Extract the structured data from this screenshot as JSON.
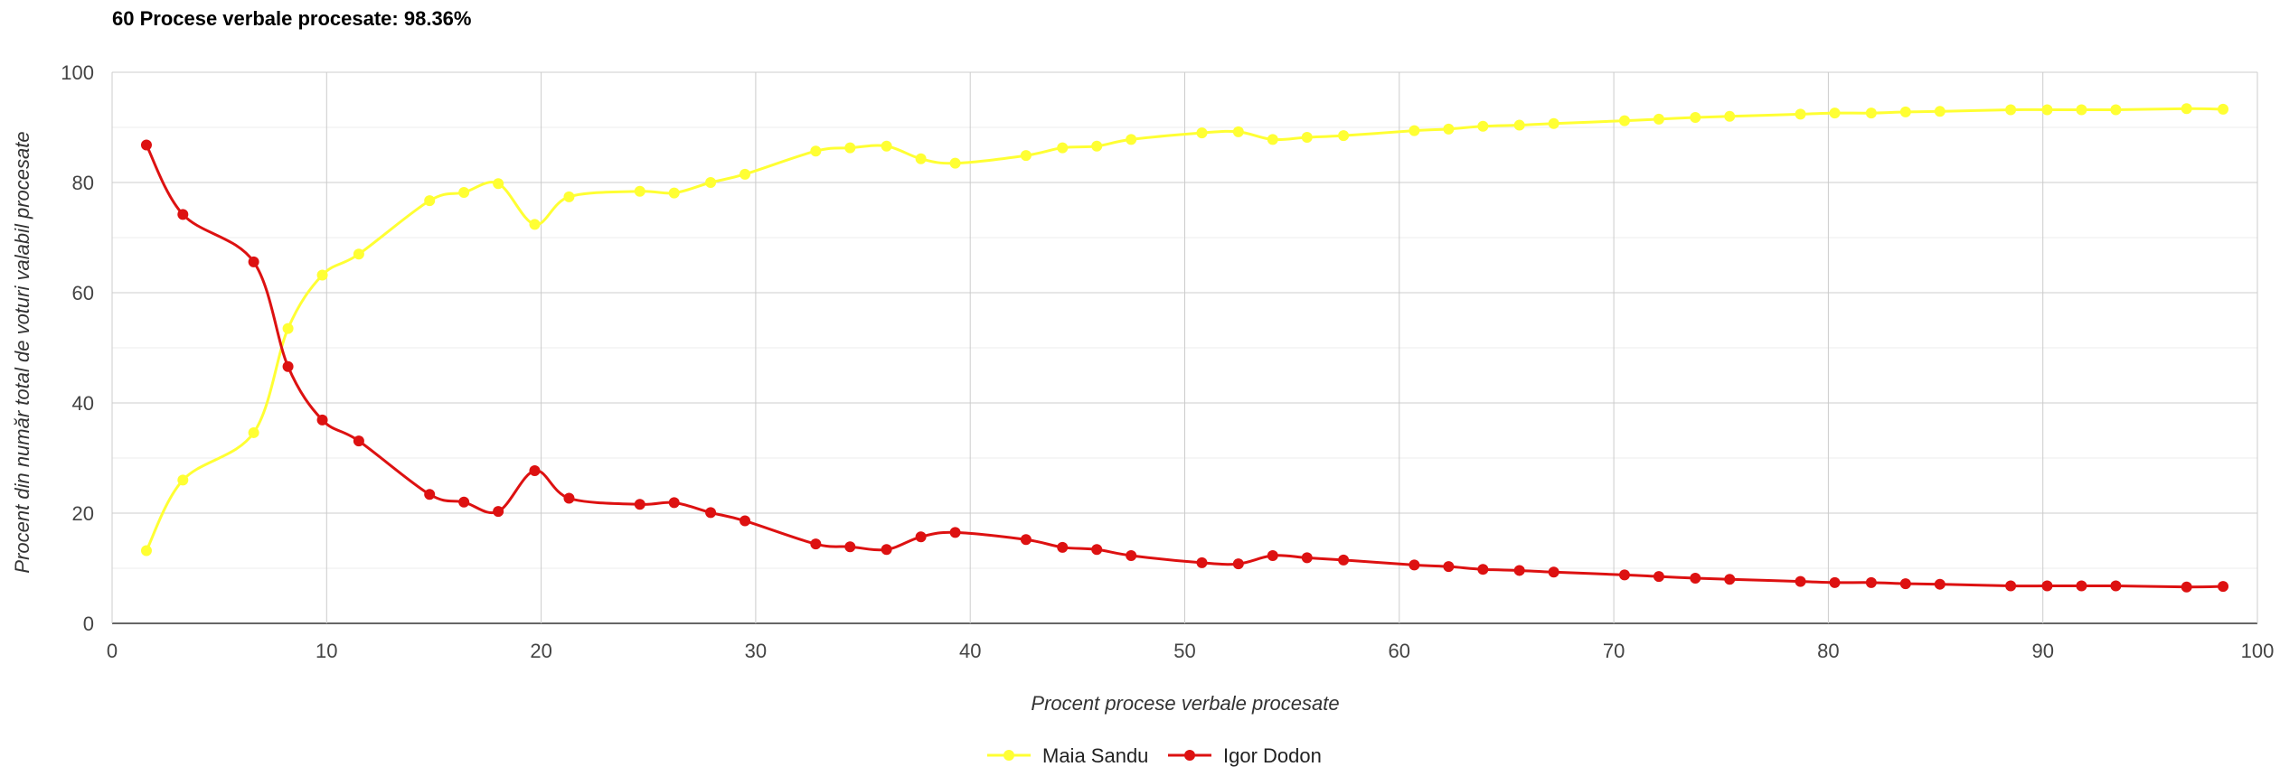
{
  "chart_data": {
    "type": "line",
    "title": "60 Procese verbale procesate: 98.36%",
    "xlabel": "Procent procese verbale procesate",
    "ylabel": "Procent din număr total de voturi valabil procesate",
    "xlim": [
      0,
      100
    ],
    "ylim": [
      0,
      100
    ],
    "xticks": [
      0,
      10,
      20,
      30,
      40,
      50,
      60,
      70,
      80,
      90,
      100
    ],
    "yticks": [
      0,
      20,
      40,
      60,
      80,
      100
    ],
    "grid": true,
    "legend_position": "bottom",
    "series": [
      {
        "name": "Maia Sandu",
        "color": "#ffff33",
        "points": [
          [
            1.6,
            13.2
          ],
          [
            3.3,
            26.0
          ],
          [
            6.6,
            34.6
          ],
          [
            8.2,
            53.5
          ],
          [
            9.8,
            63.2
          ],
          [
            11.5,
            67.0
          ],
          [
            14.8,
            76.7
          ],
          [
            16.4,
            78.2
          ],
          [
            18.0,
            79.8
          ],
          [
            19.7,
            72.4
          ],
          [
            21.3,
            77.4
          ],
          [
            24.6,
            78.4
          ],
          [
            26.2,
            78.1
          ],
          [
            27.9,
            80.0
          ],
          [
            29.5,
            81.5
          ],
          [
            32.8,
            85.7
          ],
          [
            34.4,
            86.3
          ],
          [
            36.1,
            86.6
          ],
          [
            37.7,
            84.3
          ],
          [
            39.3,
            83.5
          ],
          [
            42.6,
            84.9
          ],
          [
            44.3,
            86.3
          ],
          [
            45.9,
            86.6
          ],
          [
            47.5,
            87.8
          ],
          [
            50.8,
            89.0
          ],
          [
            52.5,
            89.2
          ],
          [
            54.1,
            87.8
          ],
          [
            55.7,
            88.2
          ],
          [
            57.4,
            88.5
          ],
          [
            60.7,
            89.4
          ],
          [
            62.3,
            89.7
          ],
          [
            63.9,
            90.2
          ],
          [
            65.6,
            90.4
          ],
          [
            67.2,
            90.7
          ],
          [
            70.5,
            91.2
          ],
          [
            72.1,
            91.5
          ],
          [
            73.8,
            91.8
          ],
          [
            75.4,
            92.0
          ],
          [
            78.7,
            92.4
          ],
          [
            80.3,
            92.6
          ],
          [
            82.0,
            92.6
          ],
          [
            83.6,
            92.8
          ],
          [
            85.2,
            92.9
          ],
          [
            88.5,
            93.2
          ],
          [
            90.2,
            93.2
          ],
          [
            91.8,
            93.2
          ],
          [
            93.4,
            93.2
          ],
          [
            96.7,
            93.4
          ],
          [
            98.4,
            93.3
          ]
        ]
      },
      {
        "name": "Igor Dodon",
        "color": "#dd1111",
        "points": [
          [
            1.6,
            86.8
          ],
          [
            3.3,
            74.2
          ],
          [
            6.6,
            65.6
          ],
          [
            8.2,
            46.6
          ],
          [
            9.8,
            36.9
          ],
          [
            11.5,
            33.1
          ],
          [
            14.8,
            23.4
          ],
          [
            16.4,
            22.0
          ],
          [
            18.0,
            20.3
          ],
          [
            19.7,
            27.7
          ],
          [
            21.3,
            22.7
          ],
          [
            24.6,
            21.6
          ],
          [
            26.2,
            21.9
          ],
          [
            27.9,
            20.1
          ],
          [
            29.5,
            18.6
          ],
          [
            32.8,
            14.4
          ],
          [
            34.4,
            13.9
          ],
          [
            36.1,
            13.4
          ],
          [
            37.7,
            15.7
          ],
          [
            39.3,
            16.5
          ],
          [
            42.6,
            15.2
          ],
          [
            44.3,
            13.8
          ],
          [
            45.9,
            13.4
          ],
          [
            47.5,
            12.3
          ],
          [
            50.8,
            11.0
          ],
          [
            52.5,
            10.8
          ],
          [
            54.1,
            12.3
          ],
          [
            55.7,
            11.9
          ],
          [
            57.4,
            11.5
          ],
          [
            60.7,
            10.6
          ],
          [
            62.3,
            10.3
          ],
          [
            63.9,
            9.8
          ],
          [
            65.6,
            9.6
          ],
          [
            67.2,
            9.3
          ],
          [
            70.5,
            8.8
          ],
          [
            72.1,
            8.5
          ],
          [
            73.8,
            8.2
          ],
          [
            75.4,
            8.0
          ],
          [
            78.7,
            7.6
          ],
          [
            80.3,
            7.4
          ],
          [
            82.0,
            7.4
          ],
          [
            83.6,
            7.2
          ],
          [
            85.2,
            7.1
          ],
          [
            88.5,
            6.8
          ],
          [
            90.2,
            6.8
          ],
          [
            91.8,
            6.8
          ],
          [
            93.4,
            6.8
          ],
          [
            96.7,
            6.6
          ],
          [
            98.4,
            6.7
          ]
        ]
      }
    ]
  }
}
